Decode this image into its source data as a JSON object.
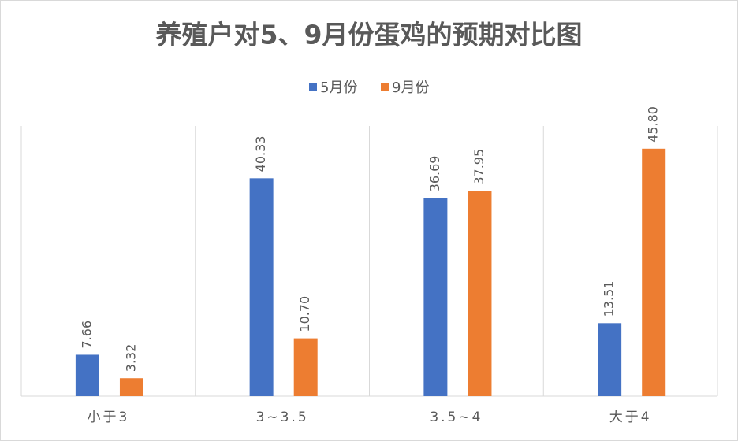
{
  "chart_data": {
    "type": "bar",
    "title": "养殖户对5、9月份蛋鸡的预期对比图",
    "categories": [
      "小于3",
      "3~3.5",
      "3.5~4",
      "大于4"
    ],
    "series": [
      {
        "name": "5月份",
        "color": "#4472c4",
        "values": [
          7.66,
          40.33,
          36.69,
          13.51
        ],
        "value_labels": [
          "7.66",
          "40.33",
          "36.69",
          "13.51"
        ]
      },
      {
        "name": "9月份",
        "color": "#ed7d31",
        "values": [
          3.32,
          10.7,
          37.95,
          45.8
        ],
        "value_labels": [
          "3.32",
          "10.70",
          "37.95",
          "45.80"
        ]
      }
    ],
    "ylim": [
      0,
      50
    ],
    "legend": "top"
  }
}
